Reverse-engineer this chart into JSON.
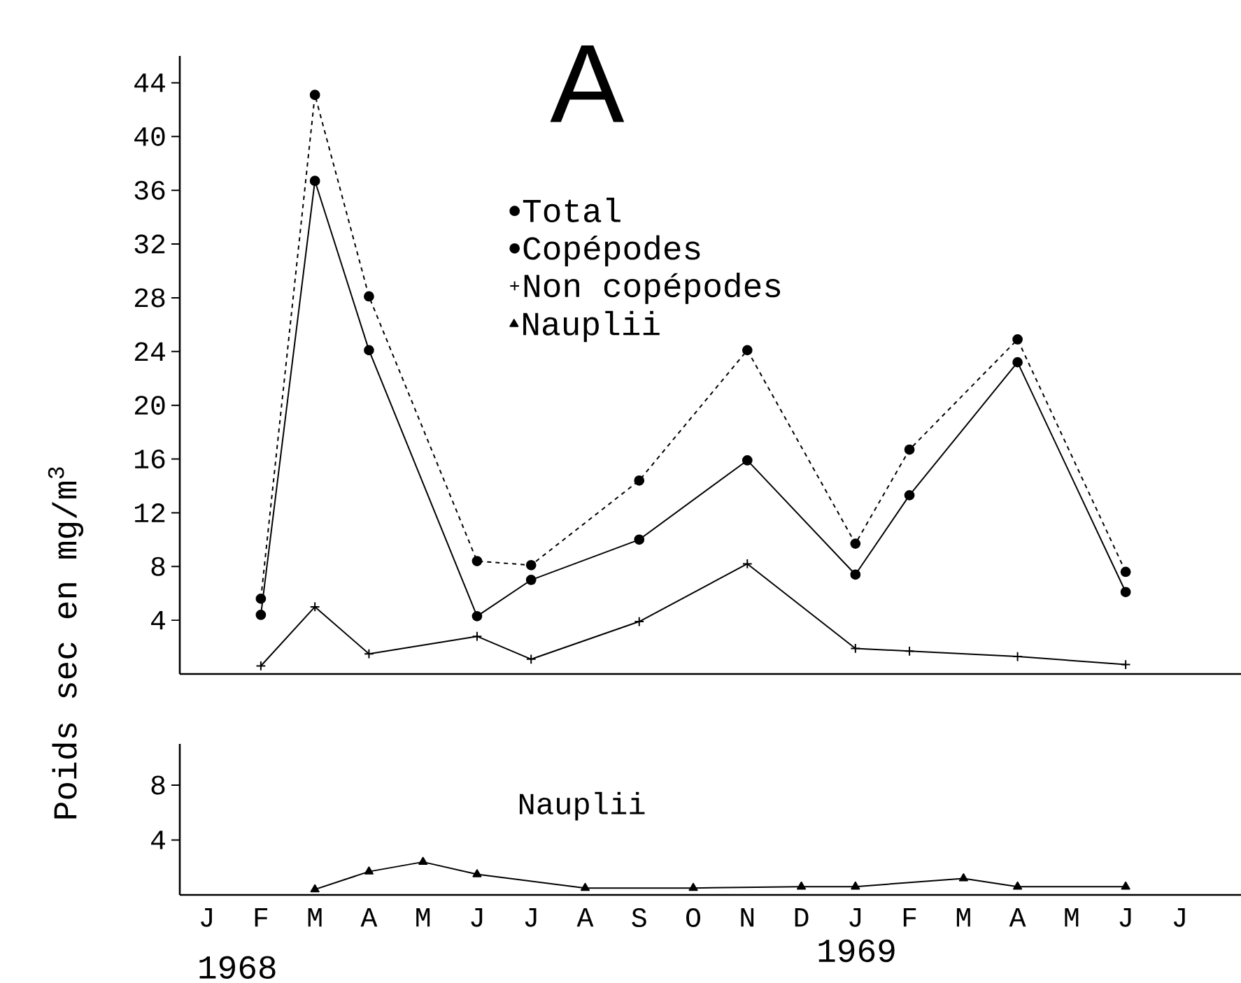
{
  "chart_data": [
    {
      "type": "line",
      "ylabel": "Poids sec en mg/m$^{3}$",
      "annotations": [
        "A"
      ],
      "ylim": [
        0,
        46
      ],
      "yticks": [
        4,
        8,
        12,
        16,
        20,
        24,
        28,
        32,
        36,
        40,
        44
      ],
      "legend": "top",
      "categories": [
        null,
        null,
        null,
        null,
        null,
        null,
        null,
        null,
        null,
        null,
        null,
        null,
        null,
        null,
        null,
        null,
        null,
        null,
        null
      ],
      "series": [
        {
          "name": "Total",
          "color": "#000000",
          "marker": "circle",
          "line_style": "dashed",
          "values": [
            null,
            5.6,
            43.1,
            28.1,
            null,
            8.4,
            8.1,
            null,
            14.4,
            null,
            24.1,
            null,
            9.7,
            16.7,
            null,
            24.9,
            null,
            7.6,
            null
          ]
        },
        {
          "name": "Copépodes",
          "color": "#000000",
          "marker": "circle",
          "line_style": "solid",
          "values": [
            null,
            4.4,
            36.7,
            24.1,
            null,
            4.3,
            7.0,
            null,
            10.0,
            null,
            15.9,
            null,
            7.4,
            13.3,
            null,
            23.2,
            null,
            6.1,
            null
          ]
        },
        {
          "name": "Non copépodes",
          "color": "#000000",
          "marker": "cross",
          "line_style": "solid",
          "values": [
            null,
            0.6,
            5.0,
            1.5,
            null,
            2.8,
            1.1,
            null,
            3.9,
            null,
            8.2,
            null,
            1.9,
            1.7,
            null,
            1.3,
            null,
            0.7,
            null
          ]
        }
      ]
    },
    {
      "type": "line",
      "annotations": [
        "1968",
        "1969"
      ],
      "ylim": [
        0,
        11
      ],
      "yticks": [
        4,
        8
      ],
      "legend": "top",
      "categories": [
        "J",
        "F",
        "M",
        "A",
        "M",
        "J",
        "J",
        "A",
        "S",
        "O",
        "N",
        "D",
        "J",
        "F",
        "M",
        "A",
        "M",
        "J",
        "J"
      ],
      "series": [
        {
          "name": "Nauplii",
          "color": "#000000",
          "marker": "triangle",
          "line_style": "solid",
          "values": [
            null,
            null,
            0.4,
            1.7,
            2.4,
            1.5,
            null,
            0.5,
            null,
            0.5,
            null,
            0.6,
            0.6,
            null,
            1.2,
            0.6,
            null,
            0.6,
            null
          ]
        }
      ]
    }
  ]
}
